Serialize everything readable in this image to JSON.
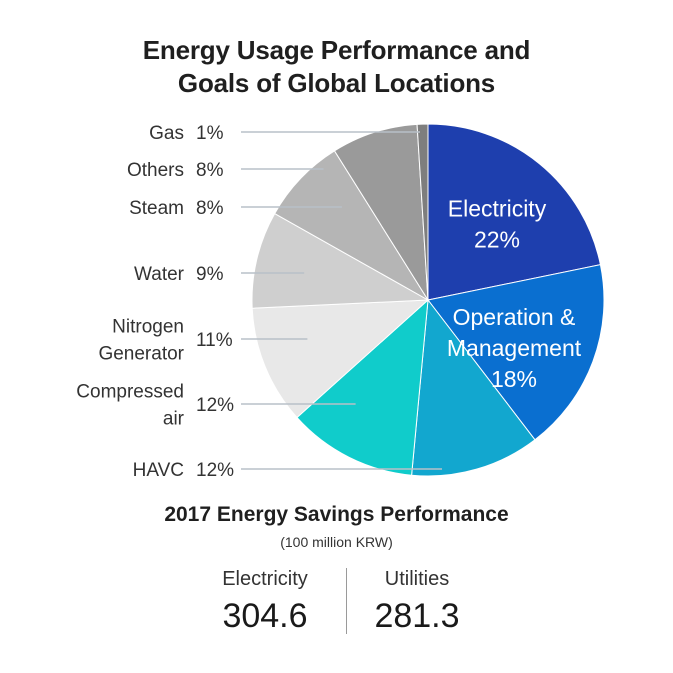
{
  "chart_data": {
    "type": "pie",
    "title": [
      "Energy Usage Performance and",
      "Goals of Global Locations"
    ],
    "slices": [
      {
        "label": [
          "Electricity"
        ],
        "percent": 22,
        "value_label": "22%",
        "color": "#1e3fae",
        "label_position": "inside"
      },
      {
        "label": [
          "Operation &",
          "Management"
        ],
        "percent": 18,
        "value_label": "18%",
        "color": "#0a6fd0",
        "label_position": "inside"
      },
      {
        "label": [
          "HAVC"
        ],
        "percent": 12,
        "value_label": "12%",
        "color": "#12a7cf",
        "label_position": "outside"
      },
      {
        "label": [
          "Compressed",
          "air"
        ],
        "percent": 12,
        "value_label": "12%",
        "color": "#10cccb",
        "label_position": "outside"
      },
      {
        "label": [
          "Nitrogen",
          "Generator"
        ],
        "percent": 11,
        "value_label": "11%",
        "color": "#e8e8e8",
        "label_position": "outside"
      },
      {
        "label": [
          "Water"
        ],
        "percent": 9,
        "value_label": "9%",
        "color": "#cfcfcf",
        "label_position": "outside"
      },
      {
        "label": [
          "Steam"
        ],
        "percent": 8,
        "value_label": "8%",
        "color": "#b5b5b5",
        "label_position": "outside"
      },
      {
        "label": [
          "Others"
        ],
        "percent": 8,
        "value_label": "8%",
        "color": "#9a9a9a",
        "label_position": "outside"
      },
      {
        "label": [
          "Gas"
        ],
        "percent": 1,
        "value_label": "1%",
        "color": "#7e7e7e",
        "label_position": "outside"
      }
    ]
  },
  "savings": {
    "title": "2017 Energy Savings Performance",
    "unit": "(100 million KRW)",
    "items": [
      {
        "name": "Electricity",
        "value": "304.6"
      },
      {
        "name": "Utilities",
        "value": "281.3"
      }
    ]
  }
}
